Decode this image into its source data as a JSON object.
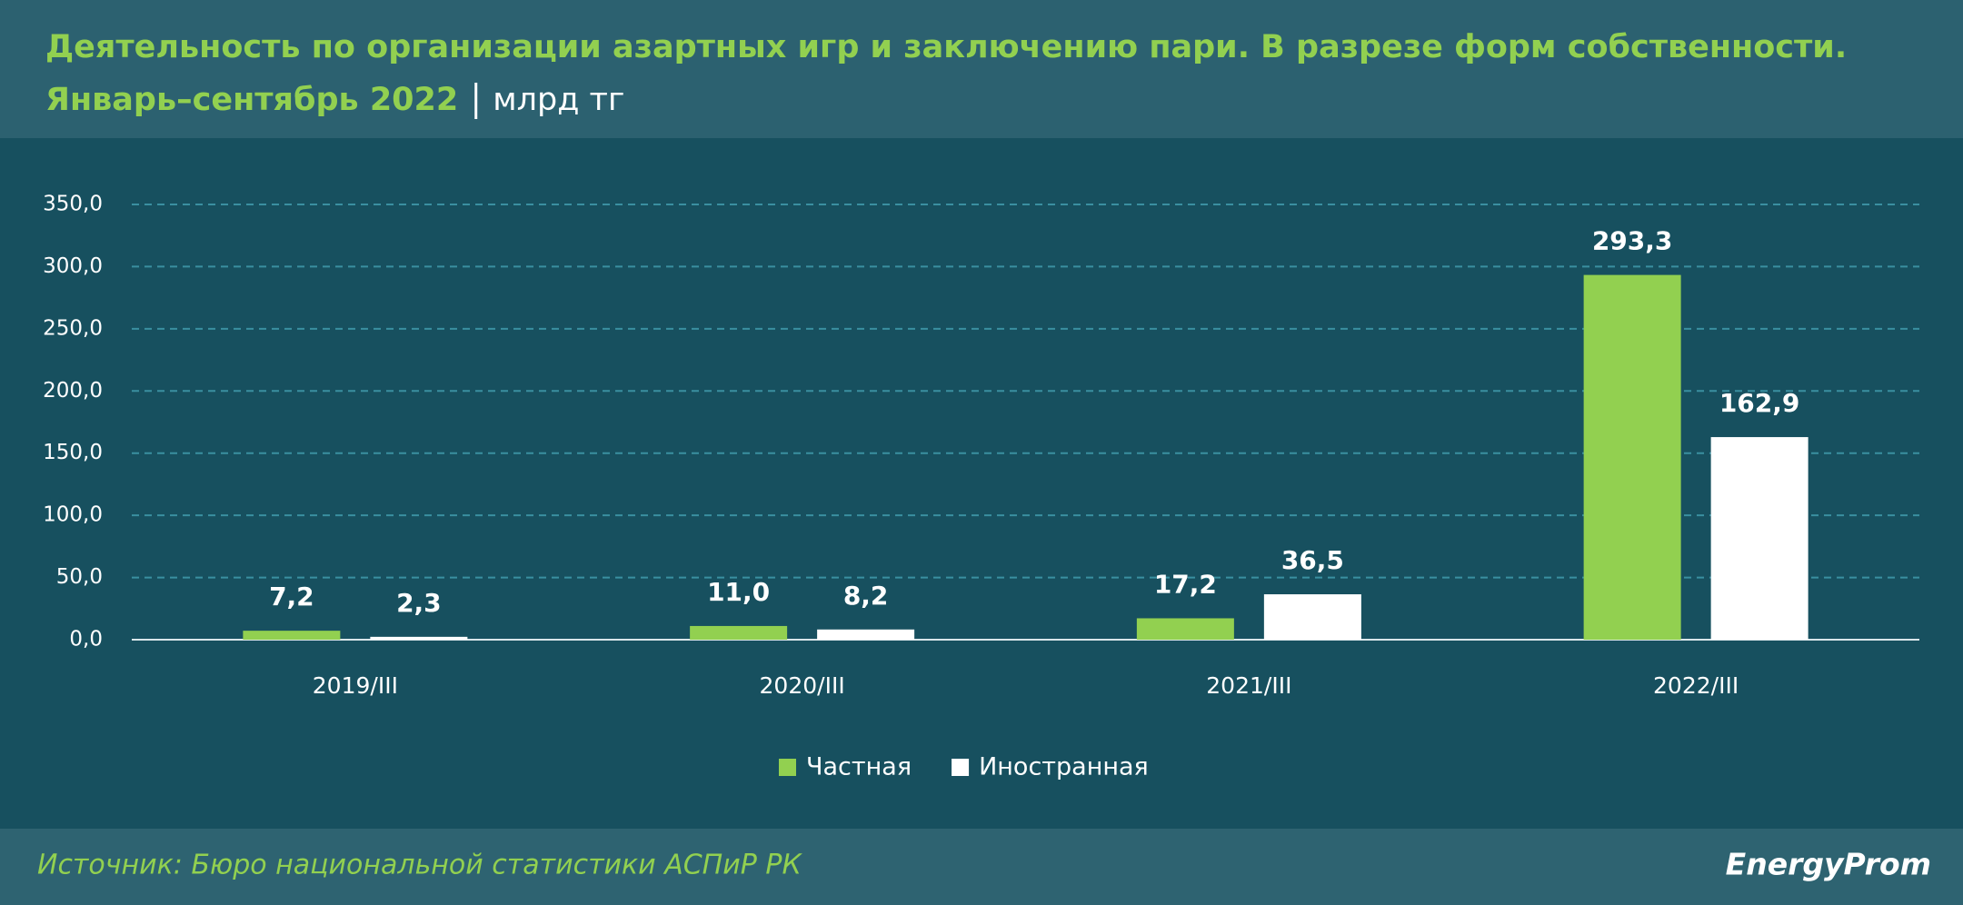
{
  "chart_data": {
    "type": "bar",
    "title": "Деятельность по организации азартных игр и заключению пари. В разрезе форм собственности.",
    "subtitle": "Январь–сентябрь 2022",
    "unit": "млрд тг",
    "categories": [
      "2019/III",
      "2020/III",
      "2021/III",
      "2022/III"
    ],
    "series": [
      {
        "name": "Частная",
        "color": "#92d050",
        "values": [
          7.2,
          11.0,
          17.2,
          293.3
        ],
        "value_labels": [
          "7,2",
          "11,0",
          "17,2",
          "293,3"
        ]
      },
      {
        "name": "Иностранная",
        "color": "#ffffff",
        "values": [
          2.3,
          8.2,
          36.5,
          162.9
        ],
        "value_labels": [
          "2,3",
          "8,2",
          "36,5",
          "162,9"
        ]
      }
    ],
    "ylim": [
      0,
      350
    ],
    "yticks": [
      {
        "value": 0,
        "label": "0,0"
      },
      {
        "value": 50,
        "label": "50,0"
      },
      {
        "value": 100,
        "label": "100,0"
      },
      {
        "value": 150,
        "label": "150,0"
      },
      {
        "value": 200,
        "label": "200,0"
      },
      {
        "value": 250,
        "label": "250,0"
      },
      {
        "value": 300,
        "label": "300,0"
      },
      {
        "value": 350,
        "label": "350,0"
      }
    ],
    "grid": true,
    "legend": "bottom",
    "source": "Источник: Бюро национальной статистики АСПиР РК",
    "brand": "EnergyProm"
  }
}
